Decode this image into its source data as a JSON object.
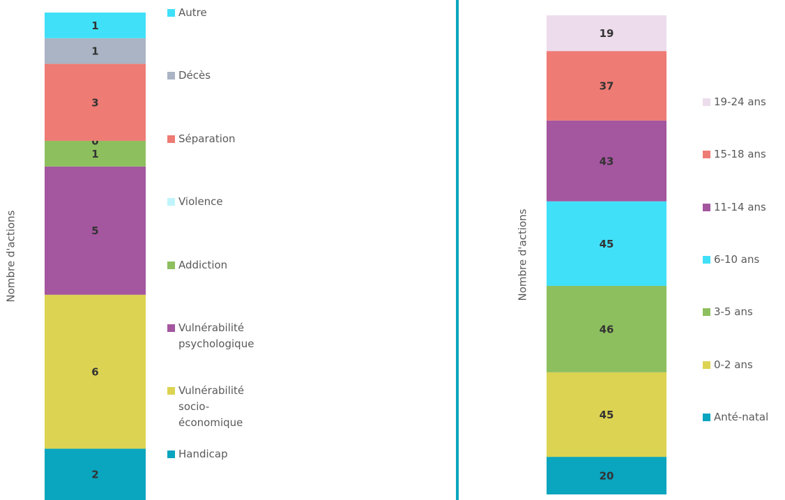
{
  "chart_data": [
    {
      "type": "stacked_bar",
      "y_label": "Nombre d'actions",
      "ylim": [
        0,
        19
      ],
      "series": [
        {
          "name": "Handicap",
          "color": "#0aa5be",
          "values": [
            2
          ]
        },
        {
          "name": "Vulnérabilité socio-économique",
          "color": "#dcd352",
          "values": [
            6
          ]
        },
        {
          "name": "Vulnérabilité psychologique",
          "color": "#a4569f",
          "values": [
            5
          ]
        },
        {
          "name": "Addiction",
          "color": "#8ebf5f",
          "values": [
            1
          ]
        },
        {
          "name": "Violence",
          "color": "#c0f4fa",
          "values": [
            0
          ]
        },
        {
          "name": "Séparation",
          "color": "#ee7b74",
          "values": [
            3
          ]
        },
        {
          "name": "Décès",
          "color": "#aab4c4",
          "values": [
            1
          ]
        },
        {
          "name": "Autre",
          "color": "#40e0f8",
          "values": [
            1
          ]
        }
      ]
    },
    {
      "type": "stacked_bar",
      "y_label": "Nombre d'actions",
      "ylim": [
        0,
        255
      ],
      "series": [
        {
          "name": "Anté-natal",
          "color": "#0aa5be",
          "values": [
            20
          ]
        },
        {
          "name": "0-2 ans",
          "color": "#dcd352",
          "values": [
            45
          ]
        },
        {
          "name": "3-5 ans",
          "color": "#8ebf5f",
          "values": [
            46
          ]
        },
        {
          "name": "6-10 ans",
          "color": "#40e0f8",
          "values": [
            45
          ]
        },
        {
          "name": "11-14 ans",
          "color": "#a4569f",
          "values": [
            43
          ]
        },
        {
          "name": "15-18 ans",
          "color": "#ee7b74",
          "values": [
            37
          ]
        },
        {
          "name": "19-24 ans",
          "color": "#ecdcec",
          "values": [
            19
          ]
        }
      ]
    }
  ]
}
